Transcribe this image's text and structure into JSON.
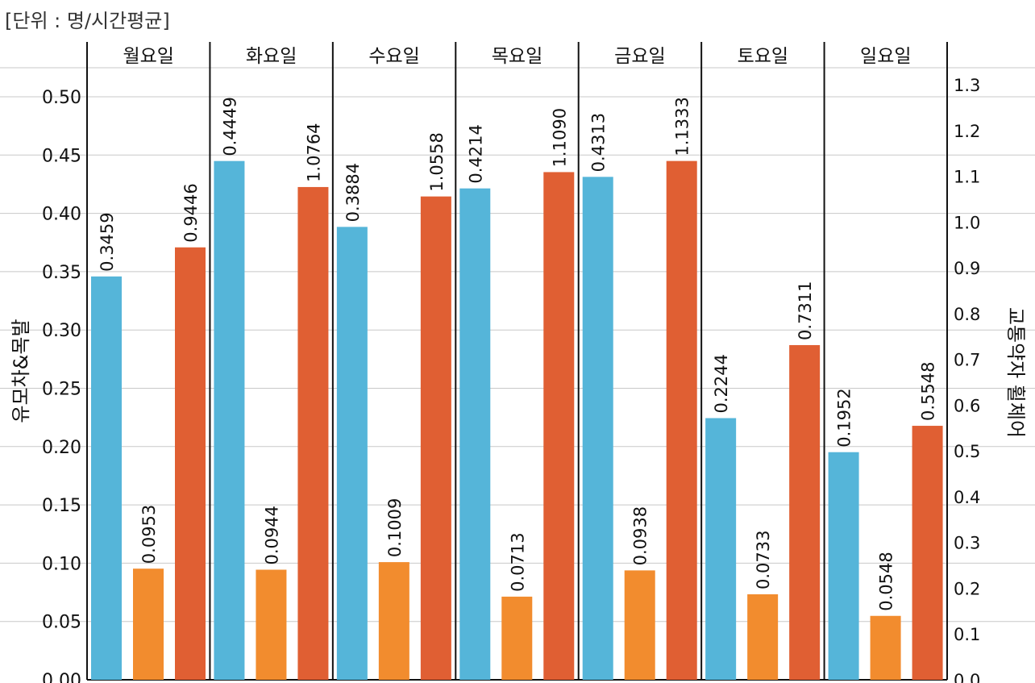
{
  "unit_label": "[단위 : 명/시간평균]",
  "chart_data": {
    "type": "bar",
    "categories": [
      "월요일",
      "화요일",
      "수요일",
      "목요일",
      "금요일",
      "토요일",
      "일요일"
    ],
    "series": [
      {
        "values": [
          0.3459,
          0.4449,
          0.3884,
          0.4214,
          0.4313,
          0.2244,
          0.1952
        ],
        "axis": "left",
        "color": "#55b5d9"
      },
      {
        "values": [
          0.0953,
          0.0944,
          0.1009,
          0.0713,
          0.0938,
          0.0733,
          0.0548
        ],
        "axis": "left",
        "color": "#f28c2e"
      },
      {
        "values": [
          0.9446,
          1.0764,
          1.0558,
          1.109,
          1.1333,
          0.7311,
          0.5548
        ],
        "axis": "right",
        "color": "#e05f33"
      }
    ],
    "value_labels": [
      [
        "0.3459",
        "0.4449",
        "0.3884",
        "0.4214",
        "0.4313",
        "0.2244",
        "0.1952"
      ],
      [
        "0.0953",
        "0.0944",
        "0.1009",
        "0.0713",
        "0.0938",
        "0.0733",
        "0.0548"
      ],
      [
        "0.9446",
        "1.0764",
        "1.0558",
        "1.1090",
        "1.1333",
        "0.7311",
        "0.5548"
      ]
    ],
    "ylabel_left": "유모차&목발",
    "ylabel_right": "교통약자 휠체어",
    "ylim_left": [
      0,
      0.5
    ],
    "ylim_right": [
      0,
      1.3
    ],
    "yticks_left": [
      "0.00",
      "0.05",
      "0.10",
      "0.15",
      "0.20",
      "0.25",
      "0.30",
      "0.35",
      "0.40",
      "0.45",
      "0.50"
    ],
    "yticks_right": [
      "0.0",
      "0.1",
      "0.2",
      "0.3",
      "0.4",
      "0.5",
      "0.6",
      "0.7",
      "0.8",
      "0.9",
      "1.0",
      "1.1",
      "1.2",
      "1.3"
    ],
    "grid": true
  }
}
